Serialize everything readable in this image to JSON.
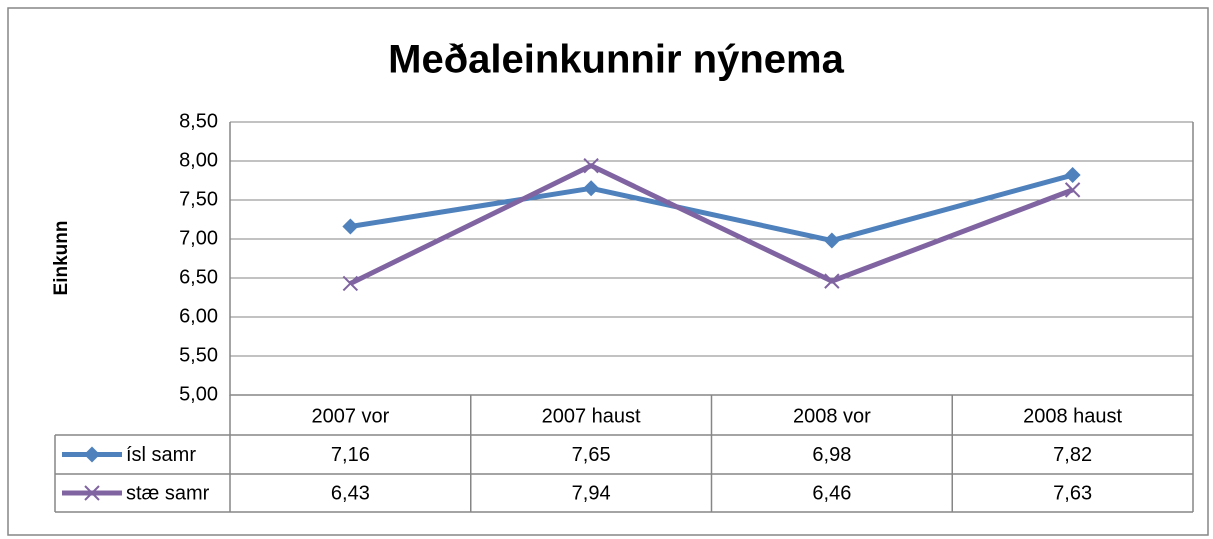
{
  "chart_data": {
    "type": "line",
    "title": "Meðaleinkunnir nýnema",
    "y_label": "Einkunn",
    "categories": [
      "2007 vor",
      "2007 haust",
      "2008 vor",
      "2008 haust"
    ],
    "series": [
      {
        "name": "ísl samr",
        "color": "#4f81bd",
        "marker": "diamond",
        "values": [
          7.16,
          7.65,
          6.98,
          7.82
        ],
        "value_labels": [
          "7,16",
          "7,65",
          "6,98",
          "7,82"
        ]
      },
      {
        "name": "stæ samr",
        "color": "#8064a2",
        "marker": "x",
        "values": [
          6.43,
          7.94,
          6.46,
          7.63
        ],
        "value_labels": [
          "6,43",
          "7,94",
          "6,46",
          "7,63"
        ]
      }
    ],
    "ylim": [
      5,
      8.5
    ],
    "yticks": [
      {
        "value": 5,
        "label": "5,00"
      },
      {
        "value": 5.5,
        "label": "5,50"
      },
      {
        "value": 6,
        "label": "6,00"
      },
      {
        "value": 6.5,
        "label": "6,50"
      },
      {
        "value": 7,
        "label": "7,00"
      },
      {
        "value": 7.5,
        "label": "7,50"
      },
      {
        "value": 8,
        "label": "8,00"
      },
      {
        "value": 8.5,
        "label": "8,50"
      }
    ],
    "grid": true
  }
}
